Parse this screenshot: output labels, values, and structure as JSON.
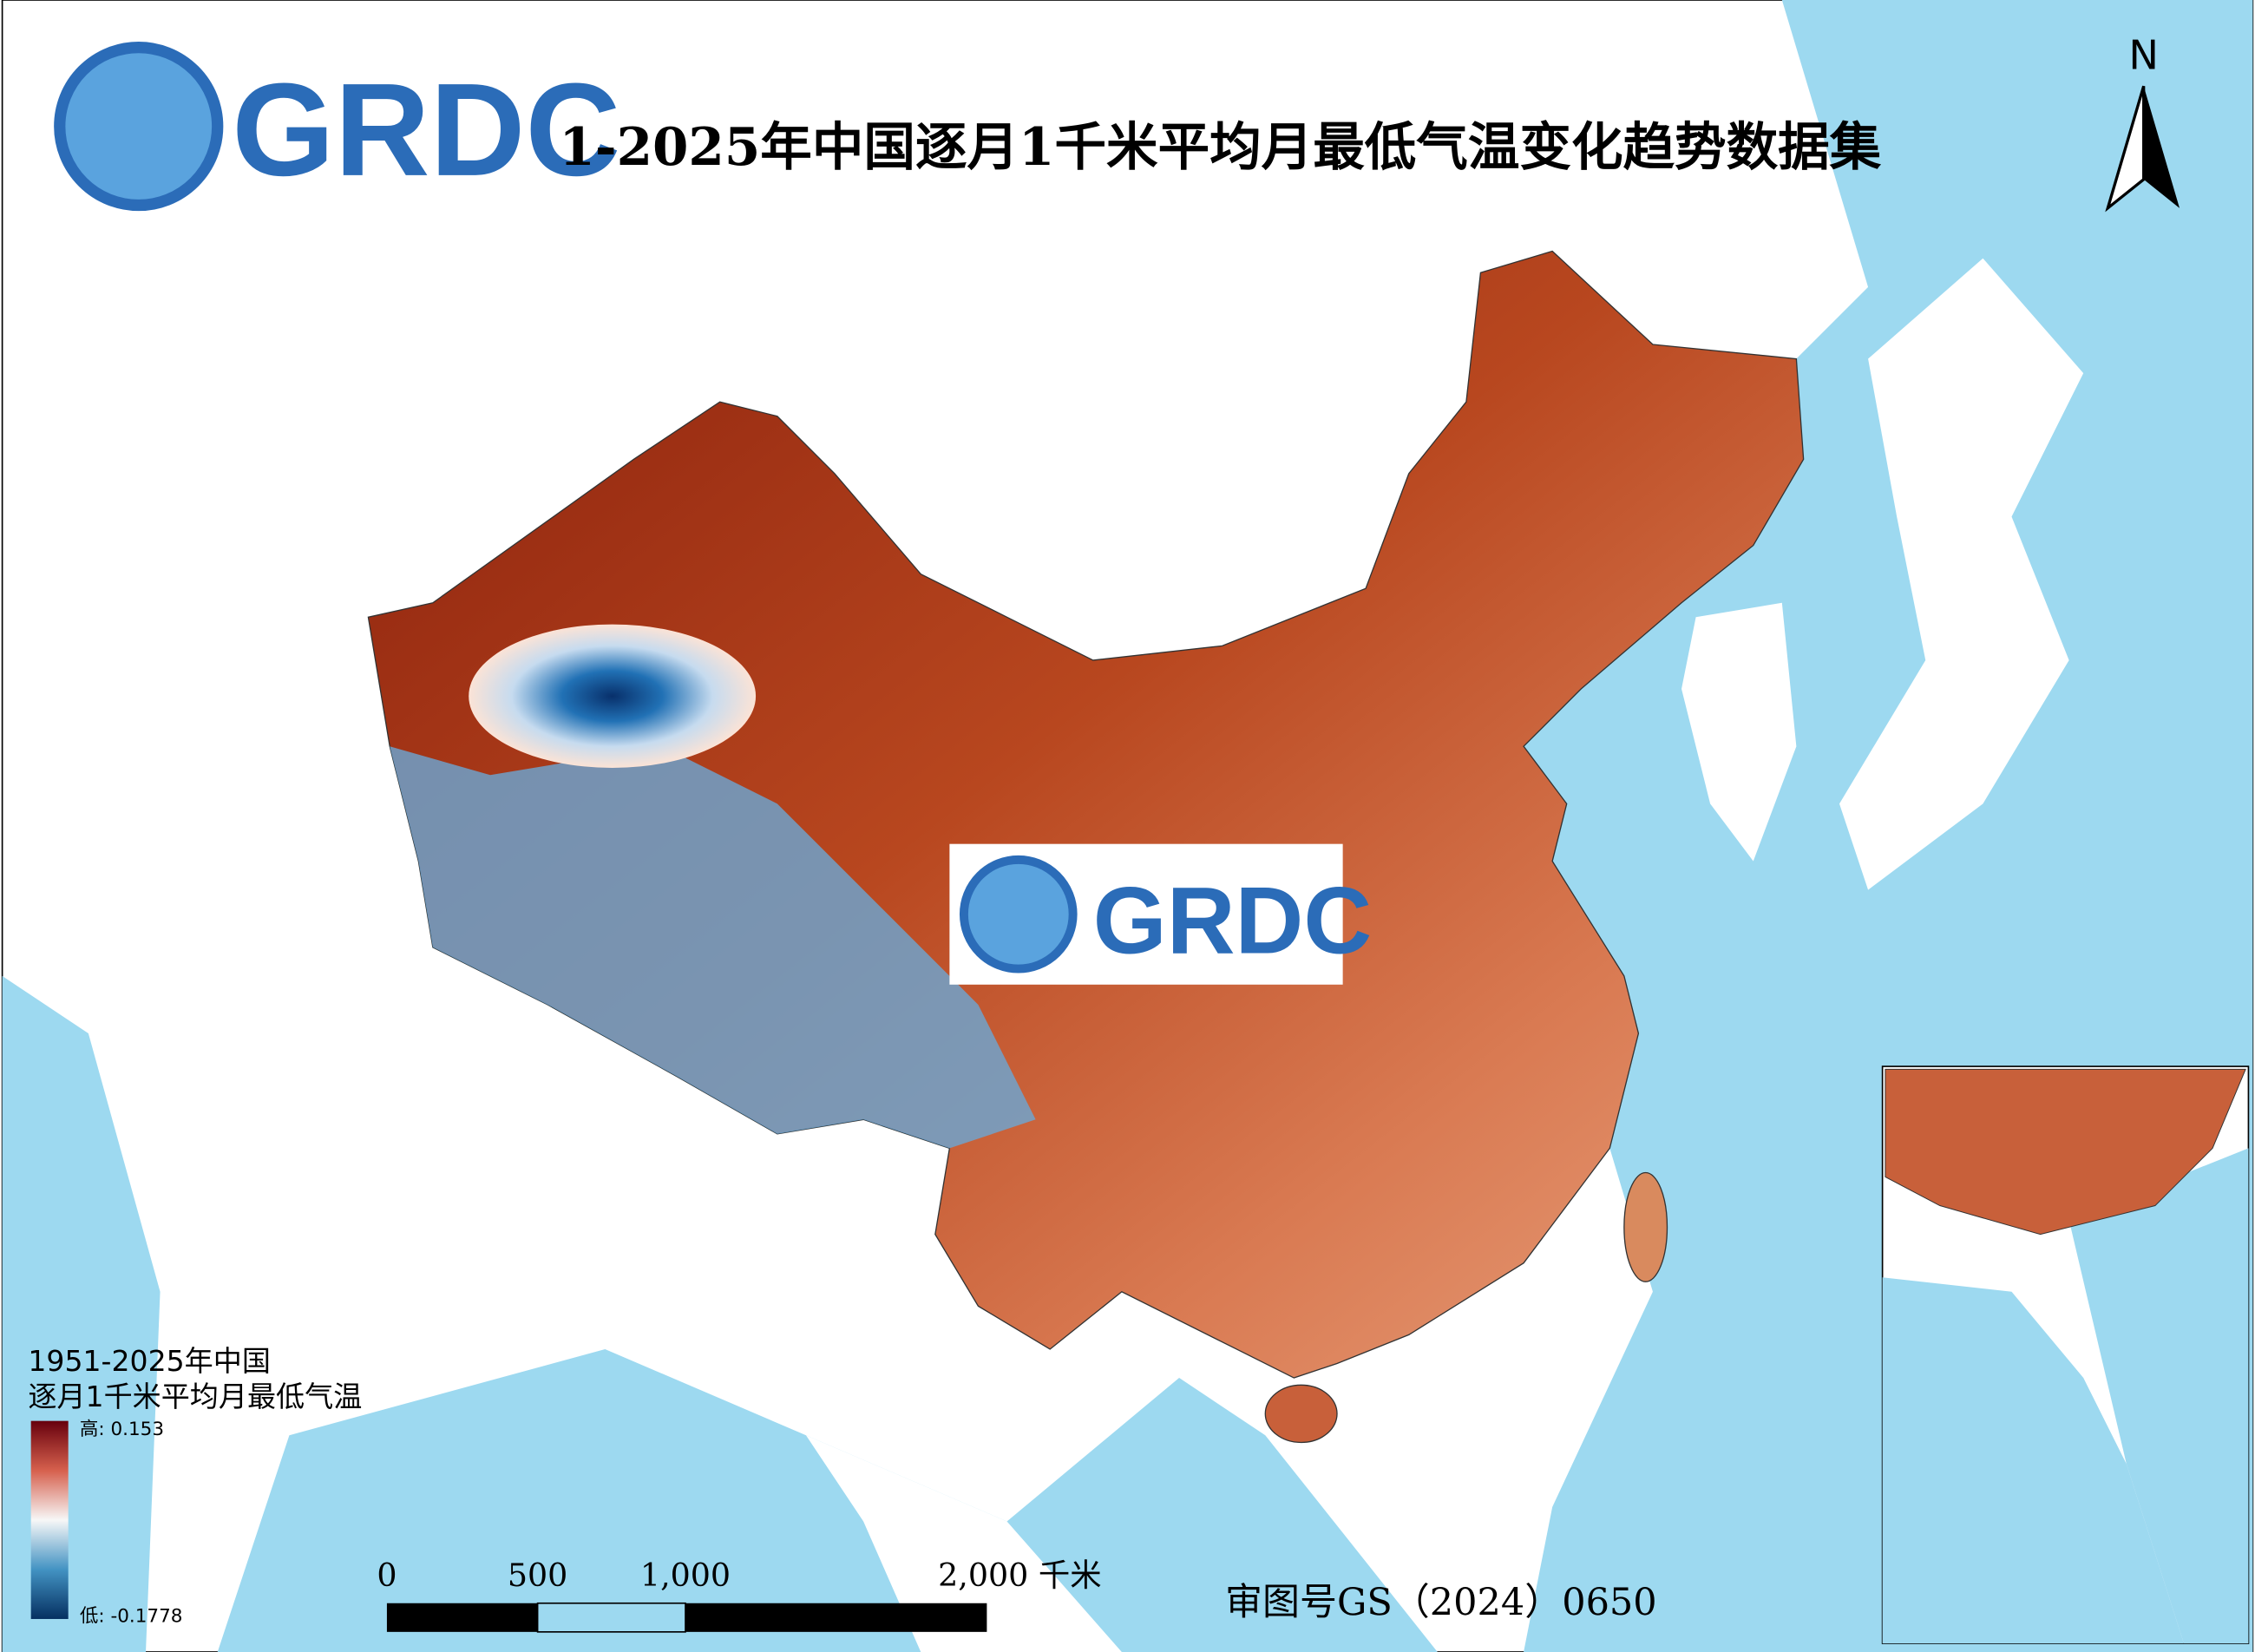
{
  "header": {
    "logo": "GRDC",
    "title": "1-2025年中国逐月1千米平均月最低气温变化趋势数据集"
  },
  "north_arrow": {
    "label": "N"
  },
  "legend": {
    "title_lines": [
      "1951-2025年中国",
      "逐月1千米平均月最低气温"
    ],
    "high": "高: 0.153",
    "low": "低: -0.1778"
  },
  "scale_bar": {
    "labels": [
      "0",
      "500",
      "1,000",
      "2,000 千米"
    ]
  },
  "watermark": {
    "logo": "GRDC"
  },
  "review_number": "审图号GS（2024）0650"
}
